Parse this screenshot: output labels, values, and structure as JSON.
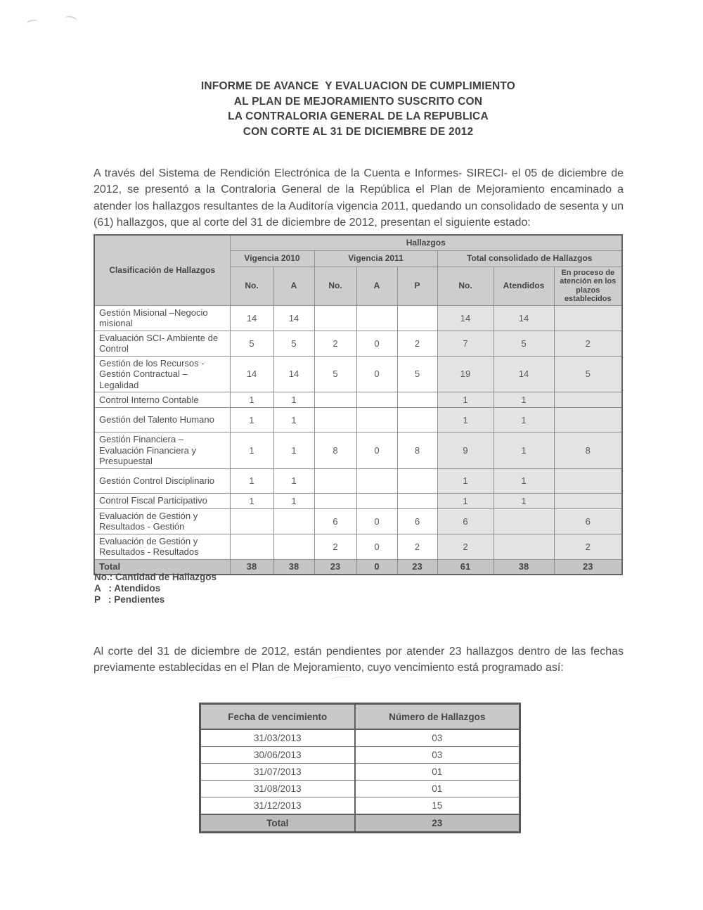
{
  "doc": {
    "title_lines": [
      "INFORME DE AVANCE  Y EVALUACION DE CUMPLIMIENTO",
      "AL PLAN DE MEJORAMIENTO SUSCRITO CON",
      "LA CONTRALORIA GENERAL DE LA REPUBLICA",
      "CON CORTE AL 31 DE DICIEMBRE DE 2012"
    ],
    "paragraph1": "A través del Sistema de Rendición Electrónica de la Cuenta e Informes- SIRECI- el 05 de diciembre de 2012, se presentó a la Contraloria General de la República el Plan de Mejoramiento encaminado a atender los hallazgos resultantes de la Auditoría vigencia 2011, quedando un consolidado de sesenta y un (61) hallazgos, que al corte del 31 de diciembre de 2012, presentan el siguiente estado:",
    "paragraph2": "Al corte del 31 de diciembre de 2012, están pendientes por atender 23 hallazgos dentro de las fechas previamente establecidas en el Plan de Mejoramiento, cuyo vencimiento está programado así:",
    "legend_lines": [
      "No.: Cantidad de Hallazgos",
      "A   : Atendidos",
      "P   : Pendientes"
    ]
  },
  "table1": {
    "header": {
      "classification": "Clasificación de Hallazgos",
      "hallazgos": "Hallazgos",
      "groups": [
        "Vigencia 2010",
        "Vigencia 2011",
        "Total consolidado de Hallazgos"
      ],
      "columns": [
        "No.",
        "A",
        "No.",
        "A",
        "P",
        "No.",
        "Atendidos",
        "En proceso de atención en los plazos establecidos"
      ]
    },
    "rows": [
      {
        "label": "Gestión Misional –Negocio misional",
        "values": [
          "14",
          "14",
          "",
          "",
          "",
          "14",
          "14",
          ""
        ]
      },
      {
        "label": "Evaluación SCI- Ambiente de Control",
        "values": [
          "5",
          "5",
          "2",
          "0",
          "2",
          "7",
          "5",
          "2"
        ]
      },
      {
        "label": "Gestión de los Recursos - Gestión Contractual – Legalidad",
        "values": [
          "14",
          "14",
          "5",
          "0",
          "5",
          "19",
          "14",
          "5"
        ]
      },
      {
        "label": "Control Interno Contable",
        "values": [
          "1",
          "1",
          "",
          "",
          "",
          "1",
          "1",
          ""
        ]
      },
      {
        "label": "Gestión del Talento Humano",
        "values": [
          "1",
          "1",
          "",
          "",
          "",
          "1",
          "1",
          ""
        ]
      },
      {
        "label": "Gestión Financiera – Evaluación Financiera y Presupuestal",
        "values": [
          "1",
          "1",
          "8",
          "0",
          "8",
          "9",
          "1",
          "8"
        ]
      },
      {
        "label": "Gestión Control Disciplinario",
        "values": [
          "1",
          "1",
          "",
          "",
          "",
          "1",
          "1",
          ""
        ]
      },
      {
        "label": "Control Fiscal Participativo",
        "values": [
          "1",
          "1",
          "",
          "",
          "",
          "1",
          "1",
          ""
        ]
      },
      {
        "label": "Evaluación de Gestión y Resultados - Gestión",
        "values": [
          "",
          "",
          "6",
          "0",
          "6",
          "6",
          "",
          "6"
        ]
      },
      {
        "label": "Evaluación de Gestión y Resultados - Resultados",
        "values": [
          "",
          "",
          "2",
          "0",
          "2",
          "2",
          "",
          "2"
        ]
      }
    ],
    "total": {
      "label": "Total",
      "values": [
        "38",
        "38",
        "23",
        "0",
        "23",
        "61",
        "38",
        "23"
      ]
    }
  },
  "table2": {
    "headers": [
      "Fecha de vencimiento",
      "Número de Hallazgos"
    ],
    "rows": [
      [
        "31/03/2013",
        "03"
      ],
      [
        "30/06/2013",
        "03"
      ],
      [
        "31/07/2013",
        "01"
      ],
      [
        "31/08/2013",
        "01"
      ],
      [
        "31/12/2013",
        "15"
      ]
    ],
    "total": [
      "Total",
      "23"
    ]
  },
  "colors": {
    "header_bg": "#cdcdcd",
    "shaded_cell_bg": "#e3e3e3",
    "total_row_bg": "#c5c5c5",
    "table2_header_bg": "#c8c8c8",
    "table2_total_bg": "#bdbdbd",
    "text": "#4e4e4e"
  }
}
